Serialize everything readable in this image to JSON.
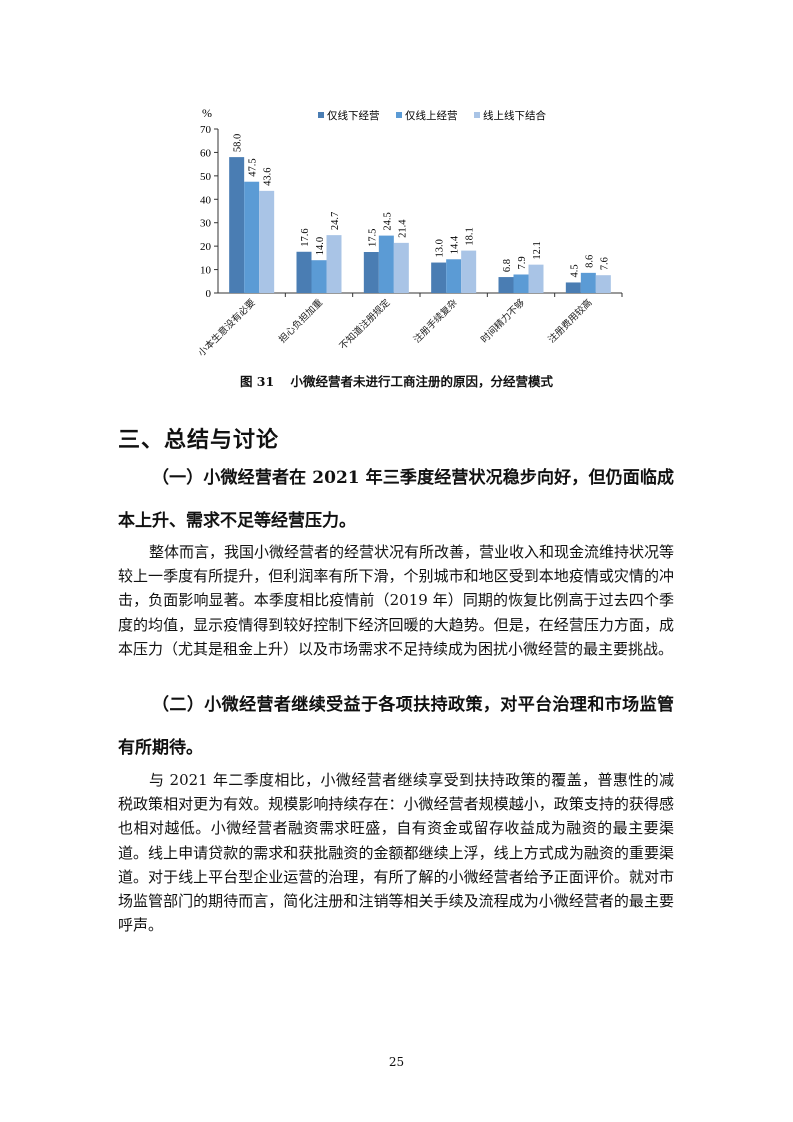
{
  "chart_data": {
    "type": "bar",
    "title": "",
    "ylabel": "%",
    "ylim": [
      0,
      70
    ],
    "yticks": [
      0,
      10,
      20,
      30,
      40,
      50,
      60,
      70
    ],
    "grid": false,
    "legend_placement": "top",
    "categories": [
      "小本生意没有必要",
      "担心负担加重",
      "不知道注册规定",
      "注册手续复杂",
      "时间精力不够",
      "注册费用较高"
    ],
    "series": [
      {
        "name": "仅线下经营",
        "color": "#4a7db3",
        "values": [
          58.0,
          17.6,
          17.5,
          13.0,
          6.8,
          4.5
        ]
      },
      {
        "name": "仅线上经营",
        "color": "#5b9bd5",
        "values": [
          47.5,
          14.0,
          24.5,
          14.4,
          7.9,
          8.6
        ]
      },
      {
        "name": "线上线下结合",
        "color": "#a9c4e6",
        "values": [
          43.6,
          24.7,
          21.4,
          18.1,
          12.1,
          7.6
        ]
      }
    ]
  },
  "caption": {
    "number": "图 31",
    "text": "小微经营者未进行工商注册的原因，分经营模式"
  },
  "section": {
    "heading": "三、总结与讨论",
    "sub1": "（一）小微经营者在 2021 年三季度经营状况稳步向好，但仍面临成本上升、需求不足等经营压力。",
    "para1": "整体而言，我国小微经营者的经营状况有所改善，营业收入和现金流维持状况等较上一季度有所提升，但利润率有所下滑，个别城市和地区受到本地疫情或灾情的冲击，负面影响显著。本季度相比疫情前（2019 年）同期的恢复比例高于过去四个季度的均值，显示疫情得到较好控制下经济回暖的大趋势。但是，在经营压力方面，成本压力（尤其是租金上升）以及市场需求不足持续成为困扰小微经营的最主要挑战。",
    "sub2": "（二）小微经营者继续受益于各项扶持政策，对平台治理和市场监管有所期待。",
    "para2": "与 2021 年二季度相比，小微经营者继续享受到扶持政策的覆盖，普惠性的减税政策相对更为有效。规模影响持续存在：小微经营者规模越小，政策支持的获得感也相对越低。小微经营者融资需求旺盛，自有资金或留存收益成为融资的最主要渠道。线上申请贷款的需求和获批融资的金额都继续上浮，线上方式成为融资的重要渠道。对于线上平台型企业运营的治理，有所了解的小微经营者给予正面评价。就对市场监管部门的期待而言，简化注册和注销等相关手续及流程成为小微经营者的最主要呼声。"
  },
  "page_number": "25"
}
